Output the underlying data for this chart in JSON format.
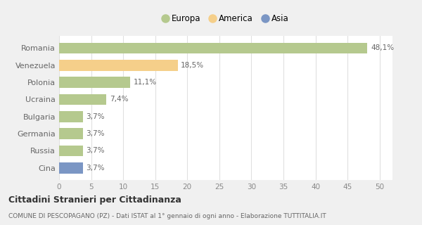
{
  "categories": [
    "Romania",
    "Venezuela",
    "Polonia",
    "Ucraina",
    "Bulgaria",
    "Germania",
    "Russia",
    "Cina"
  ],
  "values": [
    48.1,
    18.5,
    11.1,
    7.4,
    3.7,
    3.7,
    3.7,
    3.7
  ],
  "labels": [
    "48,1%",
    "18,5%",
    "11,1%",
    "7,4%",
    "3,7%",
    "3,7%",
    "3,7%",
    "3,7%"
  ],
  "colors": [
    "#b5c98e",
    "#f5cf8a",
    "#b5c98e",
    "#b5c98e",
    "#b5c98e",
    "#b5c98e",
    "#b5c98e",
    "#7b96c4"
  ],
  "legend": [
    {
      "label": "Europa",
      "color": "#b5c98e"
    },
    {
      "label": "America",
      "color": "#f5cf8a"
    },
    {
      "label": "Asia",
      "color": "#7b96c4"
    }
  ],
  "xlim": [
    0,
    52
  ],
  "xticks": [
    0,
    5,
    10,
    15,
    20,
    25,
    30,
    35,
    40,
    45,
    50
  ],
  "title": "Cittadini Stranieri per Cittadinanza",
  "subtitle": "COMUNE DI PESCOPAGANO (PZ) - Dati ISTAT al 1° gennaio di ogni anno - Elaborazione TUTTITALIA.IT",
  "background_color": "#f0f0f0",
  "plot_bg_color": "#ffffff",
  "grid_color": "#e0e0e0",
  "bar_label_color": "#666666",
  "tick_color": "#888888",
  "ylabel_color": "#666666"
}
